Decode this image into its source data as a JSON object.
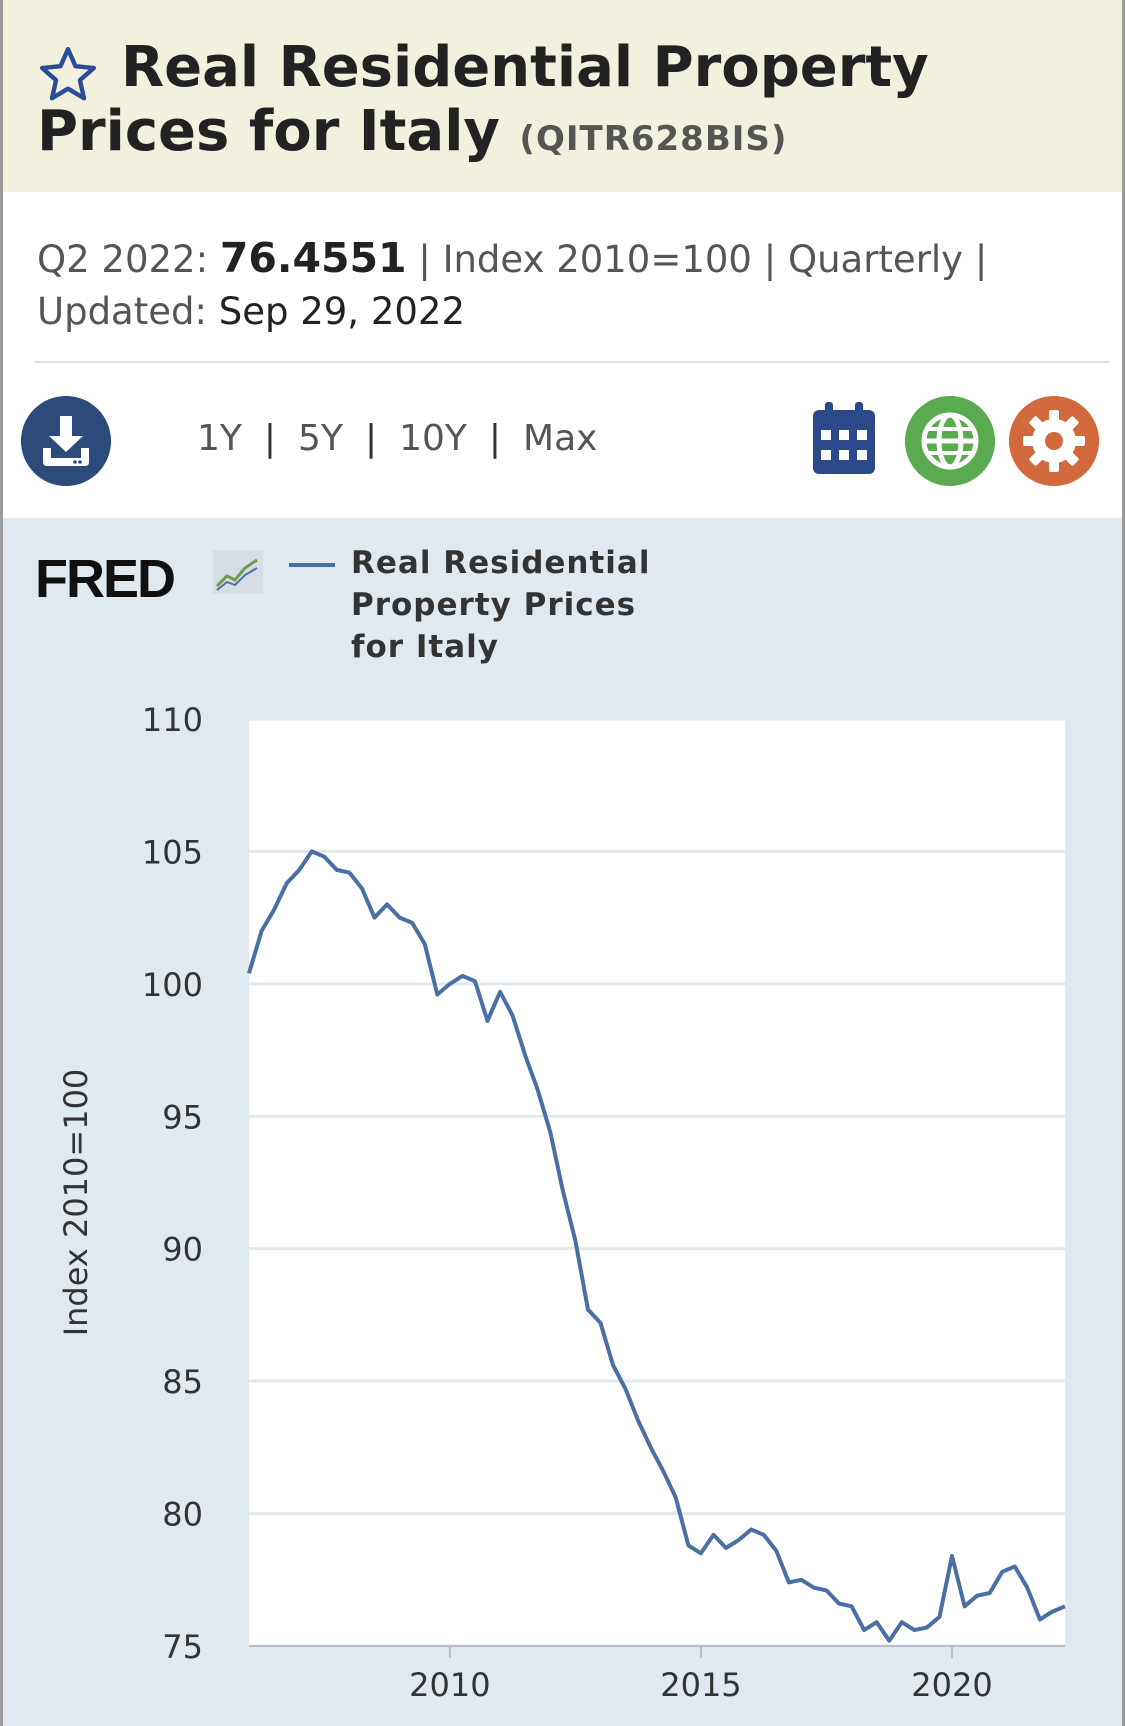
{
  "header": {
    "title": "Real Residential Property Prices for Italy",
    "series_id": "(QITR628BIS)"
  },
  "meta": {
    "period_label": "Q2 2022:",
    "value": "76.4551",
    "units": "| Index 2010=100 | Quarterly |",
    "updated_label": "Updated:",
    "updated_date": "Sep 29, 2022"
  },
  "toolbar": {
    "ranges": [
      "1Y",
      "5Y",
      "10Y",
      "Max"
    ],
    "separator": "|"
  },
  "icons": {
    "favorite": "star-icon",
    "download": "download-icon",
    "calendar": "calendar-icon",
    "globe": "globe-icon",
    "settings": "gear-icon"
  },
  "colors": {
    "title_band": "#f1f1de",
    "chart_bg": "#e1e9f0",
    "series": "#4a6fa5",
    "download": "#2c4a7a",
    "globe": "#5aaa4f",
    "gear": "#d2693c"
  },
  "chart_data": {
    "type": "line",
    "logo": "FRED",
    "title": "",
    "xlabel": "",
    "ylabel": "Index 2010=100",
    "ylim": [
      75,
      110
    ],
    "yticks": [
      75,
      80,
      85,
      90,
      95,
      100,
      105,
      110
    ],
    "xlim": [
      2006.0,
      2022.25
    ],
    "xticks": [
      "2010",
      "2015",
      "2020"
    ],
    "xtick_values": [
      2010,
      2015,
      2020
    ],
    "grid": true,
    "legend_position": "top",
    "series": [
      {
        "name": "Real Residential Property Prices for Italy",
        "color": "#4a6fa5",
        "x": [
          2006.0,
          2006.25,
          2006.5,
          2006.75,
          2007.0,
          2007.25,
          2007.5,
          2007.75,
          2008.0,
          2008.25,
          2008.5,
          2008.75,
          2009.0,
          2009.25,
          2009.5,
          2009.75,
          2010.0,
          2010.25,
          2010.5,
          2010.75,
          2011.0,
          2011.25,
          2011.5,
          2011.75,
          2012.0,
          2012.25,
          2012.5,
          2012.75,
          2013.0,
          2013.25,
          2013.5,
          2013.75,
          2014.0,
          2014.25,
          2014.5,
          2014.75,
          2015.0,
          2015.25,
          2015.5,
          2015.75,
          2016.0,
          2016.25,
          2016.5,
          2016.75,
          2017.0,
          2017.25,
          2017.5,
          2017.75,
          2018.0,
          2018.25,
          2018.5,
          2018.75,
          2019.0,
          2019.25,
          2019.5,
          2019.75,
          2020.0,
          2020.25,
          2020.5,
          2020.75,
          2021.0,
          2021.25,
          2021.5,
          2021.75,
          2022.0,
          2022.25
        ],
        "values": [
          100.4,
          102.0,
          102.8,
          103.8,
          104.3,
          105.0,
          104.8,
          104.3,
          104.2,
          103.6,
          102.5,
          103.0,
          102.5,
          102.3,
          101.5,
          99.6,
          100.0,
          100.3,
          100.1,
          98.6,
          99.7,
          98.8,
          97.3,
          96.0,
          94.4,
          92.2,
          90.3,
          87.7,
          87.2,
          85.6,
          84.7,
          83.5,
          82.5,
          81.6,
          80.6,
          78.8,
          78.5,
          79.2,
          78.7,
          79.0,
          79.4,
          79.2,
          78.6,
          77.4,
          77.5,
          77.2,
          77.1,
          76.6,
          76.5,
          75.6,
          75.9,
          75.2,
          75.9,
          75.6,
          75.7,
          76.1,
          78.4,
          76.5,
          76.9,
          77.0,
          77.8,
          78.0,
          77.2,
          76.0,
          76.3,
          76.5
        ]
      }
    ]
  }
}
